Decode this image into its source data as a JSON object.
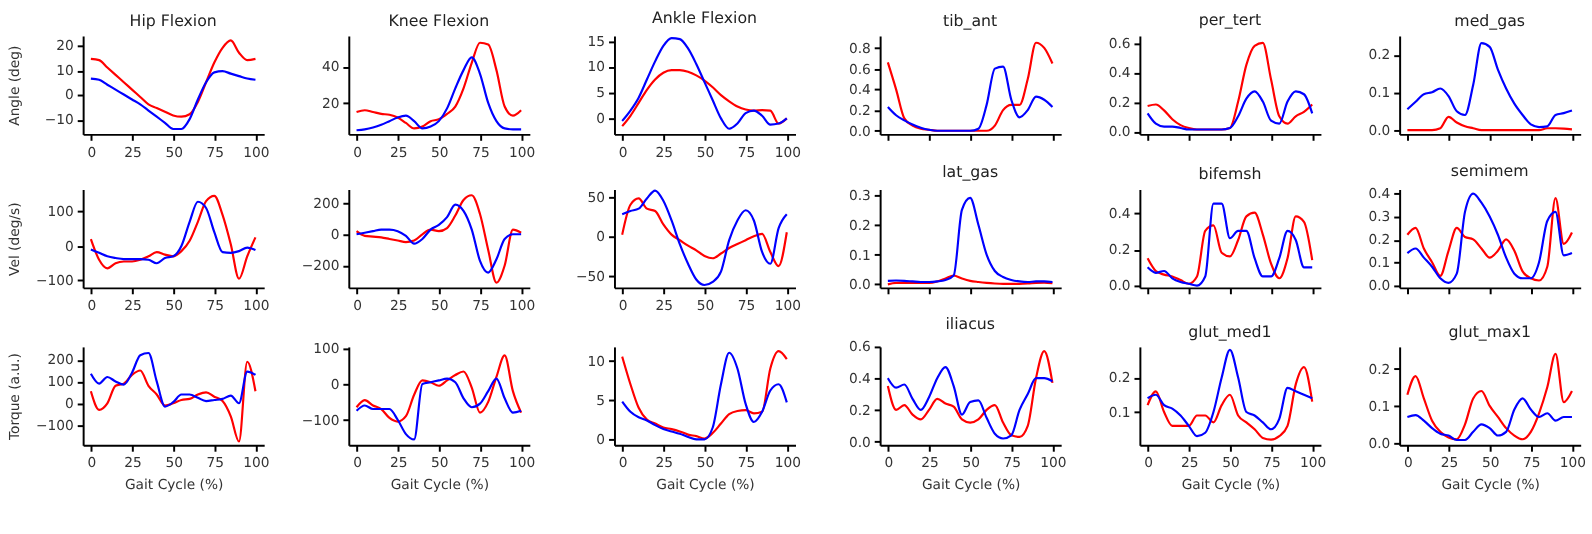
{
  "chart_data": [
    {
      "type": "line",
      "title": "Hip Flexion",
      "ylabel": "Angle (deg)",
      "x": [
        0,
        5,
        10,
        15,
        20,
        25,
        30,
        35,
        40,
        45,
        50,
        55,
        60,
        65,
        70,
        75,
        80,
        85,
        90,
        95,
        100
      ],
      "xlim": [
        -5,
        105
      ],
      "xticks": [
        0,
        25,
        50,
        75,
        100
      ],
      "ylim": [
        -16,
        24
      ],
      "yticks": [
        {
          "value": -10,
          "label": "−10"
        },
        0,
        10,
        20
      ],
      "grid": false,
      "series": [
        {
          "color": "#ff0000",
          "values": [
            14.5,
            14,
            11,
            8,
            5,
            2,
            -1,
            -4,
            -5.5,
            -7,
            -8.5,
            -9,
            -8,
            -3,
            5,
            13,
            19,
            22,
            17,
            14,
            14.5
          ]
        },
        {
          "color": "#0000ff",
          "values": [
            6.5,
            6,
            4,
            2,
            0,
            -2,
            -4,
            -6.5,
            -9,
            -11.5,
            -14,
            -14,
            -10,
            -2,
            5,
            9,
            9.5,
            8.5,
            7.5,
            6.5,
            6
          ]
        }
      ]
    },
    {
      "type": "line",
      "title": "Knee Flexion",
      "x": [
        0,
        5,
        10,
        15,
        20,
        25,
        30,
        35,
        40,
        45,
        50,
        55,
        60,
        65,
        70,
        75,
        80,
        85,
        90,
        95,
        100
      ],
      "xlim": [
        -5,
        105
      ],
      "xticks": [
        0,
        25,
        50,
        75,
        100
      ],
      "ylim": [
        3,
        57
      ],
      "yticks": [
        20,
        40
      ],
      "grid": false,
      "series": [
        {
          "color": "#ff0000",
          "values": [
            15,
            16,
            15,
            14,
            13.5,
            12,
            9,
            6,
            7,
            10,
            11,
            14,
            18,
            28,
            42,
            53,
            52,
            38,
            18,
            13,
            16
          ]
        },
        {
          "color": "#0000ff",
          "values": [
            5,
            5.5,
            6.5,
            8,
            10,
            12,
            13,
            10,
            6,
            7,
            10,
            17,
            28,
            38,
            45,
            36,
            20,
            10,
            6,
            5.5,
            5.5
          ]
        }
      ]
    },
    {
      "type": "line",
      "title": "Ankle Flexion",
      "x": [
        0,
        5,
        10,
        15,
        20,
        25,
        30,
        35,
        40,
        45,
        50,
        55,
        60,
        65,
        70,
        75,
        80,
        85,
        90,
        95,
        100
      ],
      "xlim": [
        -5,
        105
      ],
      "xticks": [
        0,
        25,
        50,
        75,
        100
      ],
      "ylim": [
        -3,
        16
      ],
      "yticks": [
        0,
        5,
        10,
        15
      ],
      "grid": false,
      "series": [
        {
          "color": "#ff0000",
          "values": [
            -1.5,
            0.5,
            3,
            5.5,
            7.5,
            8.8,
            9.3,
            9.3,
            9,
            8.3,
            7.3,
            6,
            4.5,
            3.3,
            2.3,
            1.7,
            1.5,
            1.6,
            1.5,
            -1,
            0
          ]
        },
        {
          "color": "#0000ff",
          "values": [
            -0.5,
            1.5,
            4,
            7.5,
            11,
            14,
            15.5,
            15.3,
            13.5,
            10.5,
            7,
            3.5,
            0,
            -2,
            -1,
            1,
            1.5,
            0.5,
            -1.2,
            -1,
            0
          ]
        }
      ]
    },
    {
      "type": "line",
      "title": "tib_ant",
      "tick_labels": "y",
      "x": [
        0,
        5,
        10,
        15,
        20,
        25,
        30,
        35,
        40,
        45,
        50,
        55,
        60,
        65,
        70,
        75,
        80,
        85,
        90,
        95,
        100
      ],
      "xlim": [
        -5,
        105
      ],
      "xticks": [
        0,
        25,
        50,
        75,
        100
      ],
      "ylim": [
        -0.03,
        0.92
      ],
      "yticks": [
        {
          "value": 0,
          "label": "0.0"
        },
        0.2,
        0.4,
        0.6,
        0.8
      ],
      "grid": false,
      "series": [
        {
          "color": "#ff0000",
          "values": [
            0.66,
            0.4,
            0.12,
            0.05,
            0.02,
            0.01,
            0,
            0,
            0,
            0,
            0,
            0,
            0,
            0.05,
            0.2,
            0.25,
            0.25,
            0.5,
            0.85,
            0.8,
            0.65
          ]
        },
        {
          "color": "#0000ff",
          "values": [
            0.23,
            0.15,
            0.1,
            0.06,
            0.03,
            0.01,
            0,
            0,
            0,
            0,
            0,
            0.02,
            0.25,
            0.6,
            0.62,
            0.3,
            0.13,
            0.2,
            0.33,
            0.3,
            0.23
          ]
        }
      ]
    },
    {
      "type": "line",
      "title": "per_tert",
      "tick_labels": "y",
      "x": [
        0,
        5,
        10,
        15,
        20,
        25,
        30,
        35,
        40,
        45,
        50,
        55,
        60,
        65,
        70,
        75,
        80,
        85,
        90,
        95,
        100
      ],
      "xlim": [
        -5,
        105
      ],
      "xticks": [
        0,
        25,
        50,
        75,
        100
      ],
      "ylim": [
        -0.02,
        0.65
      ],
      "yticks": [
        {
          "value": 0,
          "label": "0.0"
        },
        0.2,
        0.4,
        0.6
      ],
      "grid": false,
      "series": [
        {
          "color": "#ff0000",
          "values": [
            0.17,
            0.18,
            0.14,
            0.08,
            0.04,
            0.02,
            0.01,
            0.01,
            0.01,
            0.01,
            0.02,
            0.2,
            0.45,
            0.58,
            0.6,
            0.35,
            0.1,
            0.05,
            0.1,
            0.13,
            0.18
          ]
        },
        {
          "color": "#0000ff",
          "values": [
            0.12,
            0.05,
            0.03,
            0.03,
            0.02,
            0.01,
            0.01,
            0.01,
            0.01,
            0.01,
            0.02,
            0.1,
            0.22,
            0.27,
            0.2,
            0.07,
            0.05,
            0.2,
            0.27,
            0.25,
            0.12
          ]
        }
      ]
    },
    {
      "type": "line",
      "title": "med_gas",
      "tick_labels": "y",
      "x": [
        0,
        5,
        10,
        15,
        20,
        25,
        30,
        35,
        40,
        45,
        50,
        55,
        60,
        65,
        70,
        75,
        80,
        85,
        90,
        95,
        100
      ],
      "xlim": [
        -5,
        105
      ],
      "xticks": [
        0,
        25,
        50,
        75,
        100
      ],
      "ylim": [
        -0.01,
        0.25
      ],
      "yticks": [
        {
          "value": 0,
          "label": "0.0"
        },
        0.1,
        0.2
      ],
      "grid": false,
      "series": [
        {
          "color": "#ff0000",
          "values": [
            0,
            0,
            0,
            0,
            0.005,
            0.035,
            0.02,
            0.01,
            0.005,
            0,
            0,
            0,
            0,
            0,
            0,
            0,
            0,
            0.005,
            0.005,
            0.004,
            0.002
          ]
        },
        {
          "color": "#0000ff",
          "values": [
            0.055,
            0.075,
            0.095,
            0.1,
            0.11,
            0.09,
            0.05,
            0.04,
            0.12,
            0.23,
            0.22,
            0.16,
            0.11,
            0.07,
            0.04,
            0.015,
            0.008,
            0.01,
            0.04,
            0.045,
            0.052
          ]
        }
      ]
    },
    {
      "type": "line",
      "ylabel": "Vel (deg/s)",
      "x": [
        0,
        5,
        10,
        15,
        20,
        25,
        30,
        35,
        40,
        45,
        50,
        55,
        60,
        65,
        70,
        75,
        80,
        85,
        90,
        95,
        100
      ],
      "xlim": [
        -5,
        105
      ],
      "xticks": [
        0,
        25,
        50,
        75,
        100
      ],
      "ylim": [
        -120,
        165
      ],
      "yticks": [
        {
          "value": -100,
          "label": "−100"
        },
        0,
        100
      ],
      "grid": false,
      "series": [
        {
          "color": "#ff0000",
          "values": [
            20,
            -40,
            -65,
            -50,
            -45,
            -45,
            -40,
            -30,
            -18,
            -25,
            -30,
            -15,
            15,
            70,
            130,
            145,
            90,
            5,
            -95,
            -30,
            25
          ]
        },
        {
          "color": "#0000ff",
          "values": [
            -10,
            -20,
            -30,
            -35,
            -38,
            -38,
            -38,
            -40,
            -50,
            -35,
            -30,
            0,
            70,
            128,
            110,
            40,
            -18,
            -20,
            -15,
            -5,
            -12
          ]
        }
      ]
    },
    {
      "type": "line",
      "x": [
        0,
        5,
        10,
        15,
        20,
        25,
        30,
        35,
        40,
        45,
        50,
        55,
        60,
        65,
        70,
        75,
        80,
        85,
        90,
        95,
        100
      ],
      "xlim": [
        -5,
        105
      ],
      "xticks": [
        0,
        25,
        50,
        75,
        100
      ],
      "ylim": [
        -340,
        290
      ],
      "yticks": [
        {
          "value": -200,
          "label": "−200"
        },
        0,
        200
      ],
      "grid": false,
      "series": [
        {
          "color": "#ff0000",
          "values": [
            20,
            -10,
            -15,
            -20,
            -30,
            -40,
            -50,
            -40,
            0,
            30,
            20,
            40,
            120,
            220,
            250,
            130,
            -100,
            -310,
            -200,
            30,
            10
          ]
        },
        {
          "color": "#0000ff",
          "values": [
            0,
            10,
            20,
            30,
            30,
            20,
            -10,
            -60,
            -30,
            30,
            60,
            110,
            190,
            150,
            30,
            -170,
            -245,
            -160,
            -30,
            0,
            0
          ]
        }
      ]
    },
    {
      "type": "line",
      "x": [
        0,
        5,
        10,
        15,
        20,
        25,
        30,
        35,
        40,
        45,
        50,
        55,
        60,
        65,
        70,
        75,
        80,
        85,
        90,
        95,
        100
      ],
      "xlim": [
        -5,
        105
      ],
      "xticks": [
        0,
        25,
        50,
        75,
        100
      ],
      "ylim": [
        -65,
        60
      ],
      "yticks": [
        {
          "value": -50,
          "label": "−50"
        },
        0,
        50
      ],
      "grid": false,
      "series": [
        {
          "color": "#ff0000",
          "values": [
            2,
            40,
            48,
            35,
            32,
            15,
            2,
            -5,
            -12,
            -18,
            -25,
            -28,
            -22,
            -15,
            -10,
            -5,
            0,
            3,
            -20,
            -38,
            5
          ]
        },
        {
          "color": "#0000ff",
          "values": [
            28,
            32,
            35,
            48,
            58,
            45,
            20,
            -10,
            -35,
            -55,
            -62,
            -58,
            -45,
            -5,
            20,
            33,
            20,
            -20,
            -35,
            10,
            28
          ]
        }
      ]
    },
    {
      "type": "line",
      "title": "lat_gas",
      "tick_labels": "y",
      "x": [
        0,
        5,
        10,
        15,
        20,
        25,
        30,
        35,
        40,
        45,
        50,
        55,
        60,
        65,
        70,
        75,
        80,
        85,
        90,
        95,
        100
      ],
      "xlim": [
        -5,
        105
      ],
      "xticks": [
        0,
        25,
        50,
        75,
        100
      ],
      "ylim": [
        -0.01,
        0.32
      ],
      "yticks": [
        {
          "value": 0,
          "label": "0.0"
        },
        0.1,
        0.2,
        0.3
      ],
      "grid": false,
      "series": [
        {
          "color": "#ff0000",
          "values": [
            0,
            0.005,
            0.005,
            0.005,
            0.005,
            0.005,
            0.01,
            0.02,
            0.03,
            0.02,
            0.012,
            0.008,
            0.005,
            0.003,
            0.002,
            0.002,
            0.002,
            0.003,
            0.005,
            0.006,
            0.004
          ]
        },
        {
          "color": "#0000ff",
          "values": [
            0.012,
            0.013,
            0.012,
            0.01,
            0.008,
            0.008,
            0.01,
            0.015,
            0.03,
            0.25,
            0.29,
            0.2,
            0.1,
            0.045,
            0.025,
            0.015,
            0.01,
            0.008,
            0.01,
            0.01,
            0.008
          ]
        }
      ]
    },
    {
      "type": "line",
      "title": "bifemsh",
      "tick_labels": "y",
      "x": [
        0,
        5,
        10,
        15,
        20,
        25,
        30,
        35,
        40,
        45,
        50,
        55,
        60,
        65,
        70,
        75,
        80,
        85,
        90,
        95,
        100
      ],
      "xlim": [
        -5,
        105
      ],
      "xticks": [
        0,
        25,
        50,
        75,
        100
      ],
      "ylim": [
        -0.01,
        0.53
      ],
      "yticks": [
        {
          "value": 0,
          "label": "0.0"
        },
        0.2,
        0.4
      ],
      "grid": false,
      "series": [
        {
          "color": "#ff0000",
          "values": [
            0.15,
            0.08,
            0.06,
            0.05,
            0.03,
            0.01,
            0.05,
            0.3,
            0.33,
            0.18,
            0.16,
            0.25,
            0.38,
            0.4,
            0.28,
            0.12,
            0.04,
            0.15,
            0.38,
            0.35,
            0.14
          ]
        },
        {
          "color": "#0000ff",
          "values": [
            0.1,
            0.07,
            0.08,
            0.04,
            0.02,
            0.01,
            0,
            0.05,
            0.45,
            0.45,
            0.26,
            0.3,
            0.3,
            0.15,
            0.05,
            0.05,
            0.15,
            0.3,
            0.25,
            0.1,
            0.1
          ]
        }
      ]
    },
    {
      "type": "line",
      "title": "semimem",
      "tick_labels": "y",
      "x": [
        0,
        5,
        10,
        15,
        20,
        25,
        30,
        35,
        40,
        45,
        50,
        55,
        60,
        65,
        70,
        75,
        80,
        85,
        90,
        95,
        100
      ],
      "xlim": [
        -5,
        105
      ],
      "xticks": [
        0,
        25,
        50,
        75,
        100
      ],
      "ylim": [
        -0.01,
        0.42
      ],
      "yticks": [
        {
          "value": 0,
          "label": "0.0"
        },
        0.1,
        0.2,
        0.3,
        0.4
      ],
      "grid": false,
      "series": [
        {
          "color": "#ff0000",
          "values": [
            0.22,
            0.25,
            0.16,
            0.1,
            0.04,
            0.15,
            0.25,
            0.21,
            0.2,
            0.16,
            0.12,
            0.15,
            0.2,
            0.15,
            0.06,
            0.03,
            0.02,
            0.08,
            0.38,
            0.18,
            0.23
          ]
        },
        {
          "color": "#0000ff",
          "values": [
            0.14,
            0.16,
            0.12,
            0.08,
            0.03,
            0.01,
            0.05,
            0.32,
            0.4,
            0.36,
            0.3,
            0.22,
            0.12,
            0.05,
            0.03,
            0.03,
            0.1,
            0.28,
            0.32,
            0.13,
            0.14
          ]
        }
      ]
    },
    {
      "type": "line",
      "ylabel": "Torque (a.u.)",
      "xlabel": "Gait Cycle (%)",
      "x": [
        0,
        5,
        10,
        15,
        20,
        25,
        30,
        35,
        40,
        45,
        50,
        55,
        60,
        65,
        70,
        75,
        80,
        85,
        90,
        95,
        100
      ],
      "xlim": [
        -5,
        105
      ],
      "xticks": [
        0,
        25,
        50,
        75,
        100
      ],
      "ylim": [
        -190,
        260
      ],
      "yticks": [
        {
          "value": -100,
          "label": "−100"
        },
        0,
        100,
        200
      ],
      "grid": false,
      "series": [
        {
          "color": "#ff0000",
          "values": [
            55,
            -30,
            0,
            80,
            90,
            130,
            150,
            80,
            40,
            -10,
            0,
            15,
            20,
            40,
            50,
            30,
            10,
            -60,
            -175,
            190,
            55
          ]
        },
        {
          "color": "#0000ff",
          "values": [
            135,
            90,
            120,
            100,
            85,
            140,
            220,
            230,
            100,
            -15,
            5,
            40,
            40,
            25,
            10,
            15,
            20,
            35,
            0,
            145,
            130
          ]
        }
      ]
    },
    {
      "type": "line",
      "xlabel": "Gait Cycle (%)",
      "x": [
        0,
        5,
        10,
        15,
        20,
        25,
        30,
        35,
        40,
        45,
        50,
        55,
        60,
        65,
        70,
        75,
        80,
        85,
        90,
        95,
        100
      ],
      "xlim": [
        -5,
        105
      ],
      "xticks": [
        0,
        25,
        50,
        75,
        100
      ],
      "ylim": [
        -170,
        105
      ],
      "yticks": [
        {
          "value": -100,
          "label": "−100"
        },
        0,
        100
      ],
      "grid": false,
      "series": [
        {
          "color": "#ff0000",
          "values": [
            -65,
            -45,
            -60,
            -70,
            -95,
            -105,
            -90,
            -30,
            10,
            5,
            -5,
            10,
            25,
            35,
            -10,
            -80,
            -50,
            20,
            80,
            -20,
            -80
          ]
        },
        {
          "color": "#0000ff",
          "values": [
            -75,
            -60,
            -70,
            -70,
            -70,
            -100,
            -140,
            -155,
            0,
            5,
            10,
            15,
            5,
            -40,
            -65,
            -55,
            -20,
            15,
            -40,
            -80,
            -75
          ]
        }
      ]
    },
    {
      "type": "line",
      "xlabel": "Gait Cycle (%)",
      "x": [
        0,
        5,
        10,
        15,
        20,
        25,
        30,
        35,
        40,
        45,
        50,
        55,
        60,
        65,
        70,
        75,
        80,
        85,
        90,
        95,
        100
      ],
      "xlim": [
        -5,
        105
      ],
      "xticks": [
        0,
        25,
        50,
        75,
        100
      ],
      "ylim": [
        -0.7,
        11.8
      ],
      "yticks": [
        0,
        5,
        10
      ],
      "grid": false,
      "series": [
        {
          "color": "#ff0000",
          "values": [
            10.5,
            7,
            4,
            2.5,
            2,
            1.5,
            1.3,
            1,
            0.6,
            0.4,
            0.1,
            0.8,
            2,
            3.2,
            3.6,
            3.7,
            3.3,
            3.5,
            9,
            11.2,
            10.2
          ]
        },
        {
          "color": "#0000ff",
          "values": [
            4.8,
            3.5,
            2.8,
            2.4,
            1.8,
            1.3,
            1,
            0.7,
            0.3,
            0,
            0,
            1.5,
            7,
            11,
            9,
            4.5,
            2.2,
            3.5,
            6.2,
            7,
            4.7
          ]
        }
      ]
    },
    {
      "type": "line",
      "title": "iliacus",
      "xlabel": "Gait Cycle (%)",
      "x": [
        0,
        5,
        10,
        15,
        20,
        25,
        30,
        35,
        40,
        45,
        50,
        55,
        60,
        65,
        70,
        75,
        80,
        85,
        90,
        95,
        100
      ],
      "xlim": [
        -5,
        105
      ],
      "xticks": [
        0,
        25,
        50,
        75,
        100
      ],
      "ylim": [
        -0.02,
        0.6
      ],
      "yticks": [
        {
          "value": 0,
          "label": "0.0"
        },
        0.2,
        0.4,
        0.6
      ],
      "grid": false,
      "series": [
        {
          "color": "#ff0000",
          "values": [
            0.35,
            0.2,
            0.23,
            0.17,
            0.14,
            0.2,
            0.27,
            0.24,
            0.22,
            0.14,
            0.12,
            0.14,
            0.2,
            0.23,
            0.12,
            0.04,
            0.03,
            0.1,
            0.4,
            0.57,
            0.37
          ]
        },
        {
          "color": "#0000ff",
          "values": [
            0.4,
            0.34,
            0.36,
            0.27,
            0.2,
            0.28,
            0.4,
            0.47,
            0.35,
            0.17,
            0.25,
            0.26,
            0.15,
            0.05,
            0.02,
            0.04,
            0.2,
            0.3,
            0.4,
            0.4,
            0.38
          ]
        }
      ]
    },
    {
      "type": "line",
      "title": "glut_med1",
      "xlabel": "Gait Cycle (%)",
      "x": [
        0,
        5,
        10,
        15,
        20,
        25,
        30,
        35,
        40,
        45,
        50,
        55,
        60,
        65,
        70,
        75,
        80,
        85,
        90,
        95,
        100
      ],
      "xlim": [
        -5,
        105
      ],
      "xticks": [
        0,
        25,
        50,
        75,
        100
      ],
      "ylim": [
        0.005,
        0.29
      ],
      "yticks": [
        0.1,
        0.2
      ],
      "grid": false,
      "series": [
        {
          "color": "#ff0000",
          "values": [
            0.12,
            0.16,
            0.1,
            0.06,
            0.06,
            0.06,
            0.09,
            0.09,
            0.07,
            0.12,
            0.15,
            0.09,
            0.07,
            0.05,
            0.025,
            0.02,
            0.03,
            0.06,
            0.18,
            0.23,
            0.13
          ]
        },
        {
          "color": "#0000ff",
          "values": [
            0.14,
            0.15,
            0.12,
            0.11,
            0.09,
            0.06,
            0.03,
            0.04,
            0.1,
            0.2,
            0.28,
            0.2,
            0.1,
            0.09,
            0.07,
            0.05,
            0.08,
            0.17,
            0.16,
            0.15,
            0.14
          ]
        }
      ]
    },
    {
      "type": "line",
      "title": "glut_max1",
      "xlabel": "Gait Cycle (%)",
      "x": [
        0,
        5,
        10,
        15,
        20,
        25,
        30,
        35,
        40,
        45,
        50,
        55,
        60,
        65,
        70,
        75,
        80,
        85,
        90,
        95,
        100
      ],
      "xlim": [
        -5,
        105
      ],
      "xticks": [
        0,
        25,
        50,
        75,
        100
      ],
      "ylim": [
        -0.005,
        0.26
      ],
      "yticks": [
        {
          "value": 0,
          "label": "0.0"
        },
        0.1,
        0.2
      ],
      "grid": false,
      "series": [
        {
          "color": "#ff0000",
          "values": [
            0.13,
            0.18,
            0.12,
            0.06,
            0.03,
            0.015,
            0.01,
            0.05,
            0.12,
            0.14,
            0.1,
            0.07,
            0.04,
            0.02,
            0.01,
            0.03,
            0.08,
            0.15,
            0.24,
            0.11,
            0.14
          ]
        },
        {
          "color": "#0000ff",
          "values": [
            0.07,
            0.075,
            0.06,
            0.04,
            0.025,
            0.02,
            0.008,
            0.008,
            0.03,
            0.05,
            0.04,
            0.02,
            0.03,
            0.09,
            0.12,
            0.09,
            0.07,
            0.08,
            0.06,
            0.07,
            0.07
          ]
        }
      ]
    }
  ]
}
